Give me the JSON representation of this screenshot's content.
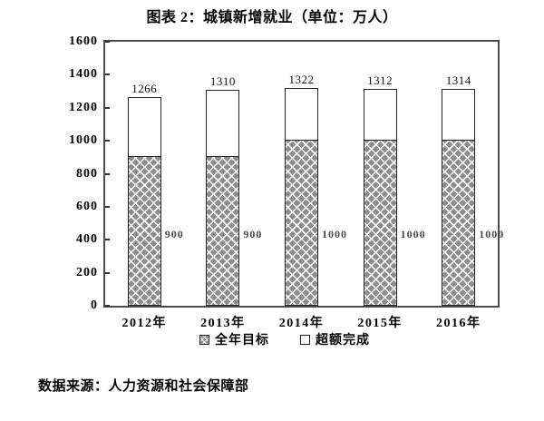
{
  "title": "图表 2：城镇新增就业（单位：万人）",
  "source": "数据来源：人力资源和社会保障部",
  "colors": {
    "hatch_fill": "#8c8c8c",
    "hatch_line": "#ffffff",
    "bar_border": "#262626",
    "frame_border": "#4c4c4c",
    "target_label_color": "#4a4a4a",
    "text": "#000000"
  },
  "chart_data": {
    "type": "bar",
    "stacked": true,
    "title": "图表 2：城镇新增就业（单位：万人）",
    "categories": [
      "2012年",
      "2013年",
      "2014年",
      "2015年",
      "2016年"
    ],
    "series": [
      {
        "name": "全年目标",
        "style": "gray-crosshatch",
        "values": [
          900,
          900,
          1000,
          1000,
          1000
        ]
      },
      {
        "name": "超额完成",
        "style": "white",
        "values": [
          366,
          410,
          322,
          312,
          314
        ]
      }
    ],
    "totals": [
      1266,
      1310,
      1322,
      1312,
      1314
    ],
    "total_labels": [
      "1266",
      "1310",
      "1322",
      "1312",
      "1314"
    ],
    "target_labels": [
      "900",
      "900",
      "1000",
      "1000",
      "1000"
    ],
    "ylim": [
      0,
      1600
    ],
    "yticks": [
      0,
      200,
      400,
      600,
      800,
      1000,
      1200,
      1400,
      1600
    ],
    "grid": false,
    "legend_position": "bottom",
    "target_label_level": 437
  }
}
